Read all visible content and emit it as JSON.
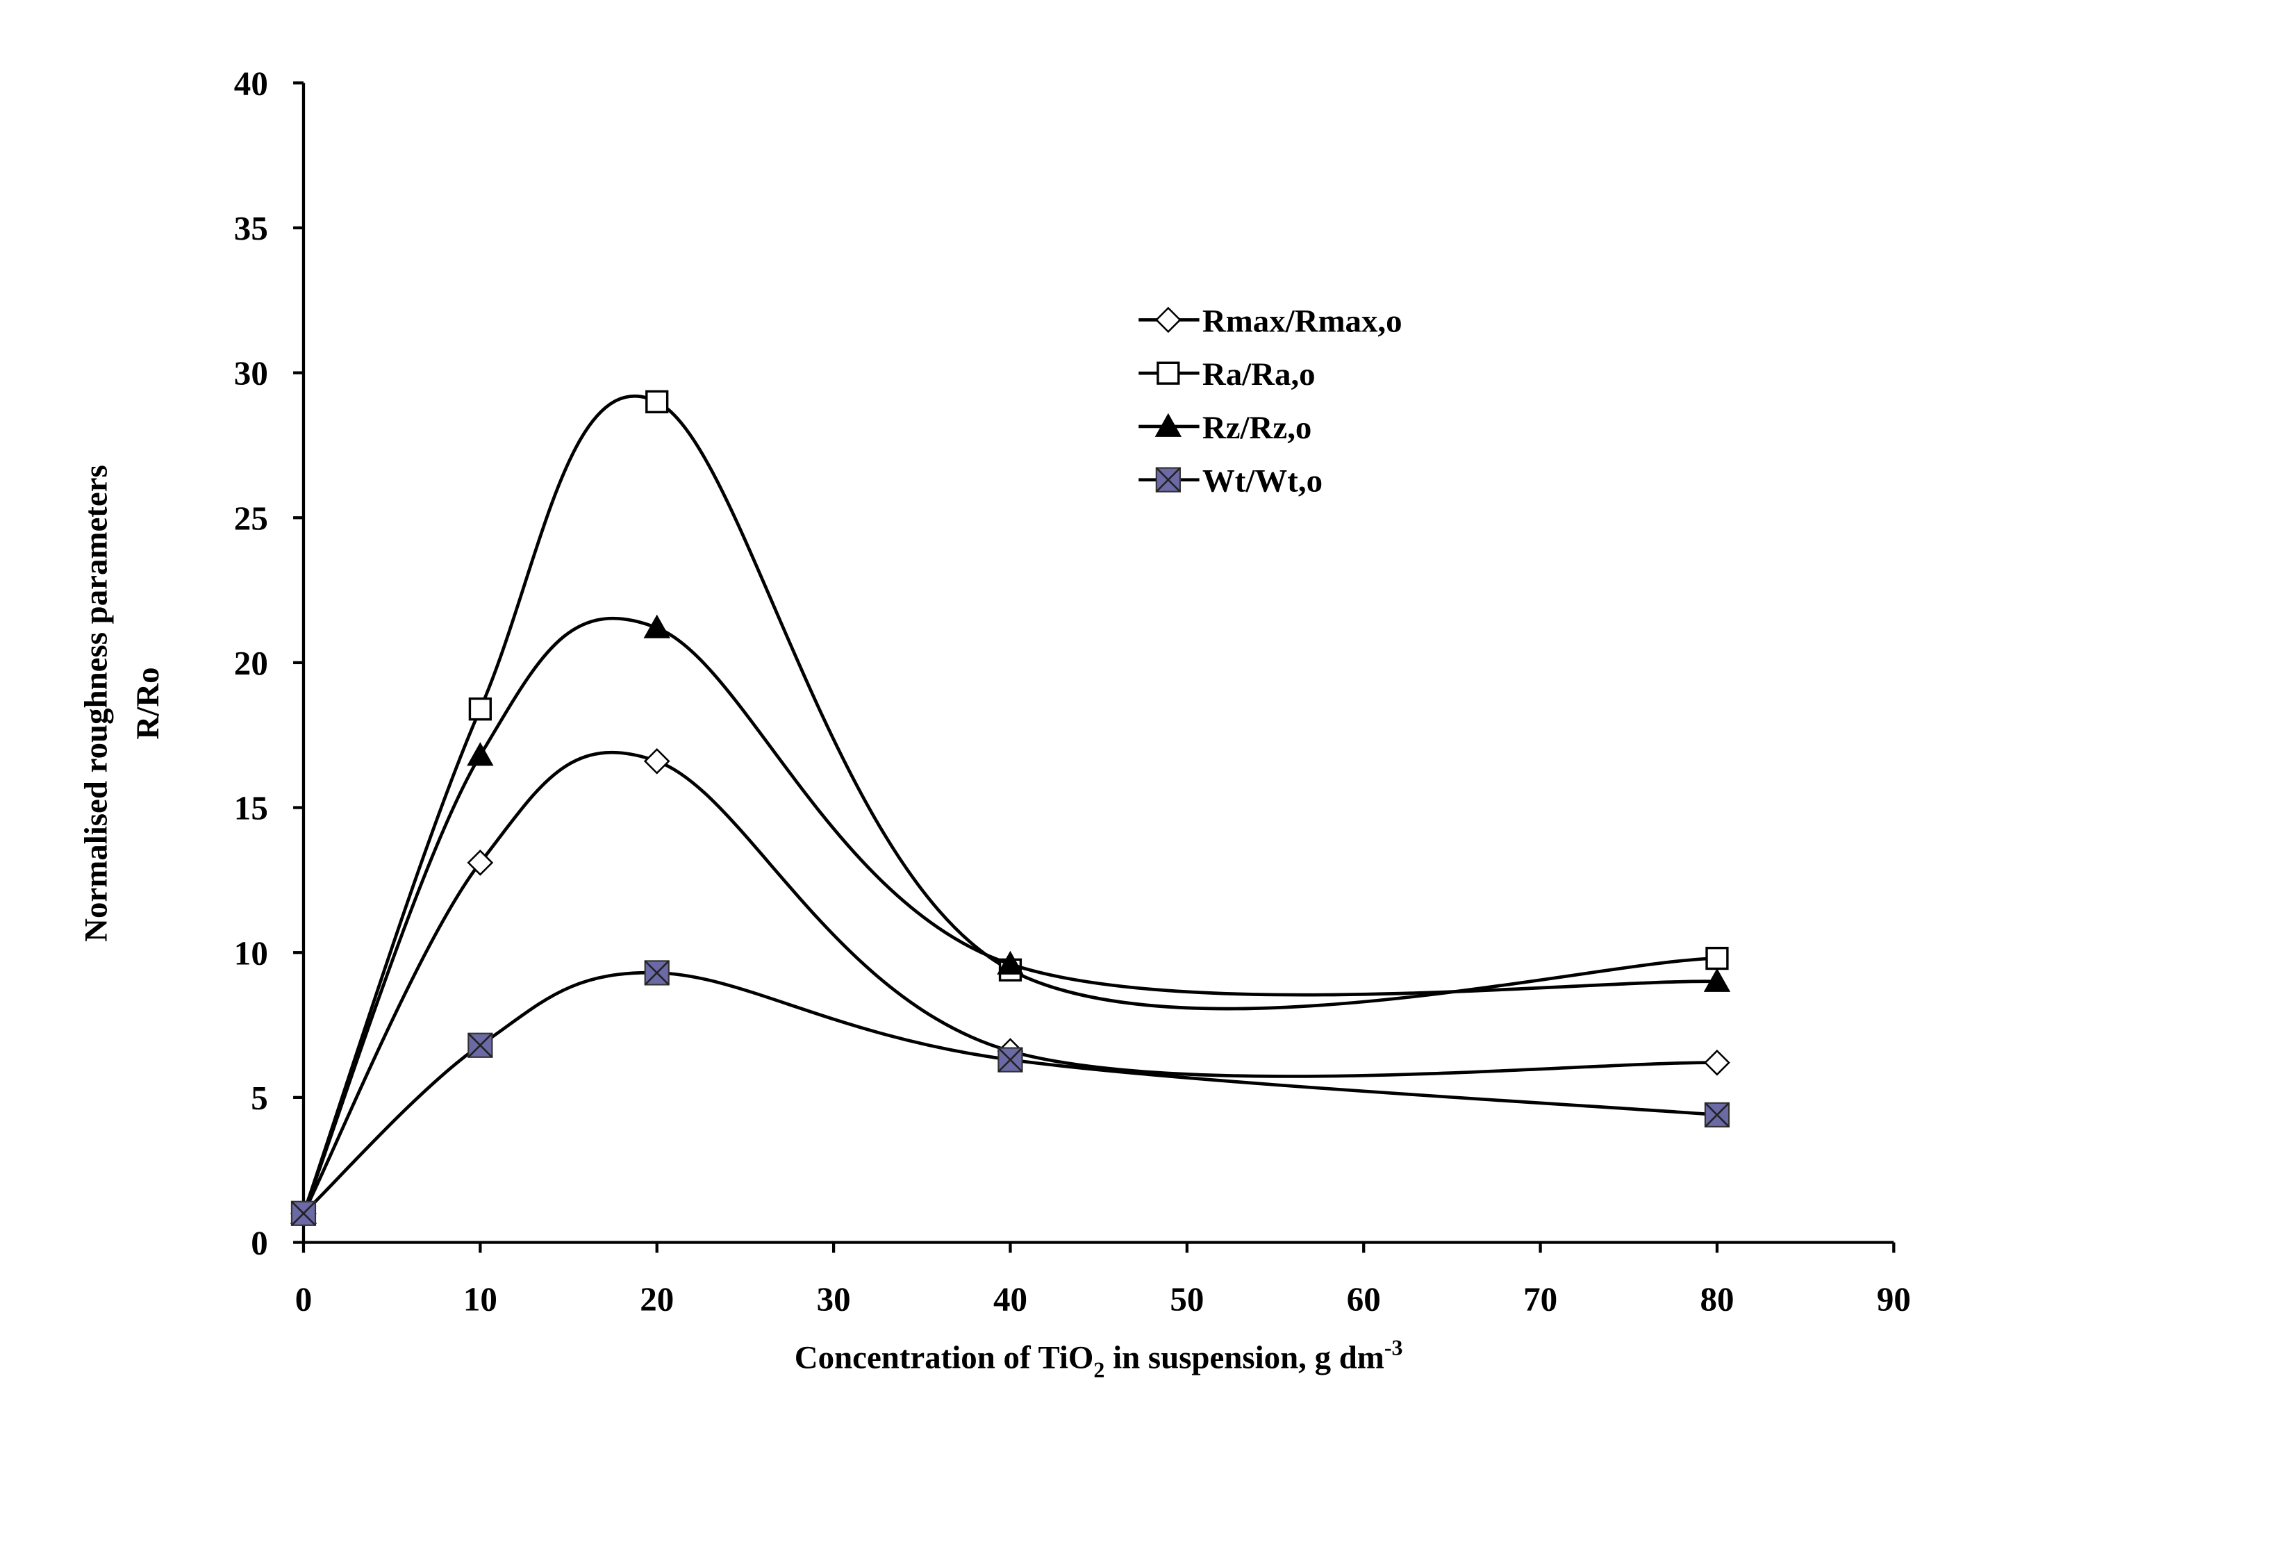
{
  "chart_data": {
    "type": "line",
    "title": "",
    "xlabel_parts": [
      "Concentration of TiO",
      "2",
      " in  suspension, g dm",
      "-3"
    ],
    "ylabel_lines": [
      "Normalised  roughness  parameters",
      "R/Ro"
    ],
    "xlim": [
      0,
      90
    ],
    "ylim": [
      0,
      40
    ],
    "xticks": [
      0,
      10,
      20,
      30,
      40,
      50,
      60,
      70,
      80,
      90
    ],
    "yticks": [
      0,
      5,
      10,
      15,
      20,
      25,
      30,
      35,
      40
    ],
    "grid": false,
    "legend_placement": "upper-center-right",
    "x": [
      0,
      10,
      20,
      40,
      80
    ],
    "series": [
      {
        "name": "Rmax/Rmax,o",
        "marker": "diamond-open",
        "values": [
          1.0,
          13.1,
          16.6,
          6.6,
          6.2
        ]
      },
      {
        "name": "Ra/Ra,o",
        "marker": "square-open",
        "values": [
          1.0,
          18.4,
          29.0,
          9.4,
          9.8
        ]
      },
      {
        "name": "Rz/Rz,o",
        "marker": "triangle-filled",
        "values": [
          1.0,
          16.8,
          21.2,
          9.6,
          9.0
        ]
      },
      {
        "name": "Wt/Wt,o",
        "marker": "square-x-filled",
        "values": [
          1.0,
          6.8,
          9.3,
          6.3,
          4.4
        ]
      }
    ],
    "colors": {
      "line": "#000000",
      "wt_fill": "#6b6aa6"
    }
  }
}
